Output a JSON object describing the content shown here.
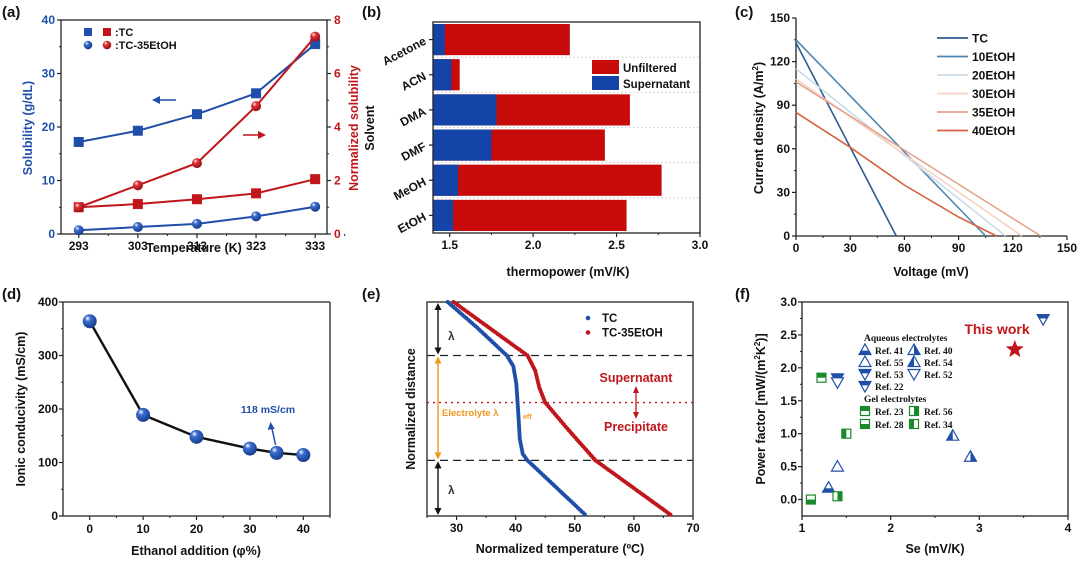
{
  "figure": {
    "panel_labels": [
      "(a)",
      "(b)",
      "(c)",
      "(d)",
      "(e)",
      "(f)"
    ]
  },
  "chart_data": [
    {
      "id": "a",
      "type": "line",
      "panel_label": "(a)",
      "title": "",
      "xlabel": "Temperature (K)",
      "ylabel": "Solubility (g/dL)",
      "y2label": "Normalized solubility",
      "x": [
        293,
        303,
        313,
        323,
        333
      ],
      "xticks": [
        "293",
        "303",
        "313",
        "323",
        "333"
      ],
      "xlim": [
        290,
        335
      ],
      "ylim": [
        0,
        40
      ],
      "yticks": [
        "0",
        "10",
        "20",
        "30",
        "40"
      ],
      "y2lim": [
        0,
        8
      ],
      "y2ticks": [
        "0",
        "2",
        "4",
        "6",
        "8"
      ],
      "colors": {
        "left": "#1f4fa8",
        "right": "#c0161b"
      },
      "legend": [
        {
          "label": ":TC",
          "markers": [
            "square",
            "square"
          ]
        },
        {
          "label": ":TC-35EtOH",
          "markers": [
            "circle",
            "circle"
          ]
        }
      ],
      "series": [
        {
          "name": "TC solubility",
          "axis": "left",
          "marker": "square",
          "color": "#1f4fa8",
          "values": [
            17.2,
            19.3,
            22.4,
            26.3,
            35.5
          ]
        },
        {
          "name": "TC-35EtOH solubility",
          "axis": "left",
          "marker": "circle",
          "color": "#1f4fa8",
          "values": [
            0.7,
            1.3,
            1.9,
            3.3,
            5.1
          ]
        },
        {
          "name": "TC normalized",
          "axis": "right",
          "marker": "square",
          "color": "#c0161b",
          "values": [
            1.0,
            1.12,
            1.3,
            1.52,
            2.05
          ]
        },
        {
          "name": "TC-35EtOH normalized",
          "axis": "right",
          "marker": "circle",
          "color": "#c0161b",
          "values": [
            1.0,
            1.82,
            2.65,
            4.78,
            7.38
          ]
        }
      ],
      "annotations": [
        {
          "type": "arrow",
          "direction": "left",
          "color": "#1f4fa8",
          "at": [
            310,
            25.2
          ]
        },
        {
          "type": "arrow",
          "direction": "right",
          "color": "#c0161b",
          "at": [
            319,
            4.1
          ]
        }
      ]
    },
    {
      "id": "b",
      "type": "bar",
      "orientation": "horizontal",
      "panel_label": "(b)",
      "xlabel": "thermopower (mV/K)",
      "ylabel": "Solvent",
      "categories": [
        "Acetone",
        "ACN",
        "DMA",
        "DMF",
        "MeOH",
        "EtOH"
      ],
      "xlim": [
        1.4,
        3.0
      ],
      "xticks": [
        "1.5",
        "2.0",
        "2.5",
        "3.0"
      ],
      "legend": [
        {
          "label": "Unfiltered",
          "color": "#c70a0a"
        },
        {
          "label": "Supernatant",
          "color": "#1544a8"
        }
      ],
      "series": [
        {
          "name": "Unfiltered",
          "color": "#c70a0a",
          "values": [
            2.22,
            1.56,
            2.58,
            2.43,
            2.77,
            2.56
          ]
        },
        {
          "name": "Supernatant",
          "color": "#1544a8",
          "values": [
            1.47,
            1.51,
            1.78,
            1.75,
            1.55,
            1.52
          ]
        }
      ]
    },
    {
      "id": "c",
      "type": "line",
      "panel_label": "(c)",
      "xlabel": "Voltage (mV)",
      "ylabel": "Current density (A/m²)",
      "ylabel_parts": [
        "Current density (A/m",
        "2",
        ")"
      ],
      "xlim": [
        0,
        150
      ],
      "ylim": [
        0,
        150
      ],
      "xticks": [
        "0",
        "30",
        "60",
        "90",
        "120",
        "150"
      ],
      "yticks": [
        "0",
        "30",
        "60",
        "90",
        "120",
        "150"
      ],
      "series": [
        {
          "name": "TC",
          "color": "#2d5d8f",
          "points": [
            [
              0,
              133
            ],
            [
              55.5,
              0
            ]
          ]
        },
        {
          "name": "10EtOH",
          "color": "#4f86b0",
          "points": [
            [
              0,
              135
            ],
            [
              105,
              0
            ]
          ]
        },
        {
          "name": "20EtOH",
          "color": "#c9dcea",
          "points": [
            [
              0,
              115
            ],
            [
              116,
              0
            ]
          ]
        },
        {
          "name": "30EtOH",
          "color": "#f6d2c2",
          "points": [
            [
              0,
              108
            ],
            [
              125,
              0
            ]
          ]
        },
        {
          "name": "35EtOH",
          "color": "#e4a58b",
          "points": [
            [
              0,
              106
            ],
            [
              135.5,
              0
            ]
          ]
        },
        {
          "name": "40EtOH",
          "color": "#d4623f",
          "points": [
            [
              0,
              85
            ],
            [
              30,
              61
            ],
            [
              60,
              35
            ],
            [
              90,
              13
            ],
            [
              111,
              0
            ]
          ]
        }
      ]
    },
    {
      "id": "d",
      "type": "line",
      "panel_label": "(d)",
      "xlabel": "Ethanol addition (φ%)",
      "ylabel": "Ionic conducivity (mS/cm)",
      "xlim": [
        -5,
        45
      ],
      "ylim": [
        0,
        400
      ],
      "xticks": [
        "0",
        "10",
        "20",
        "30",
        "40"
      ],
      "yticks": [
        "0",
        "100",
        "200",
        "300",
        "400"
      ],
      "series": [
        {
          "name": "Ionic conductivity",
          "color": "#1f4fa8",
          "x": [
            0,
            10,
            20,
            30,
            35,
            40
          ],
          "values": [
            364,
            189,
            148,
            126,
            118,
            114
          ]
        }
      ],
      "annotations": [
        {
          "text": "118 mS/cm",
          "color": "#1f4fa8",
          "points_to": [
            35,
            118
          ]
        }
      ]
    },
    {
      "id": "e",
      "type": "scatter",
      "panel_label": "(e)",
      "xlabel": "Normalized temperature (ºC)",
      "ylabel": "Normalized distance",
      "xlim": [
        25,
        70
      ],
      "ylim": [
        0,
        1
      ],
      "xticks": [
        "30",
        "40",
        "50",
        "60",
        "70"
      ],
      "legend": [
        {
          "label": "TC",
          "color": "#1f4fa8"
        },
        {
          "label": "TC-35EtOH",
          "color": "#c0161b"
        }
      ],
      "series": [
        {
          "name": "TC",
          "color": "#1f4fa8",
          "points": [
            [
              28.5,
              1.0
            ],
            [
              33.5,
              0.88
            ],
            [
              38.5,
              0.75
            ],
            [
              39.6,
              0.7
            ],
            [
              40.1,
              0.62
            ],
            [
              40.4,
              0.5
            ],
            [
              40.7,
              0.36
            ],
            [
              41.2,
              0.29
            ],
            [
              42.0,
              0.26
            ],
            [
              47.0,
              0.13
            ],
            [
              52.0,
              0.0
            ]
          ]
        },
        {
          "name": "TC-35EtOH",
          "color": "#c0161b",
          "points": [
            [
              29.5,
              1.0
            ],
            [
              36.0,
              0.87
            ],
            [
              42.0,
              0.75
            ],
            [
              43.3,
              0.68
            ],
            [
              44.0,
              0.6
            ],
            [
              45.0,
              0.53
            ],
            [
              49.0,
              0.4
            ],
            [
              53.5,
              0.26
            ],
            [
              60.0,
              0.13
            ],
            [
              66.5,
              0.0
            ]
          ]
        }
      ],
      "reference_lines": [
        {
          "type": "dashed",
          "y": 0.75,
          "color": "#222222"
        },
        {
          "type": "dashed",
          "y": 0.26,
          "color": "#222222"
        },
        {
          "type": "dotted",
          "y": 0.53,
          "color": "#c0161b"
        }
      ],
      "annotations": [
        {
          "text": "λ",
          "color": "#333333",
          "region": "top"
        },
        {
          "text": "λ",
          "color": "#333333",
          "region": "bottom"
        },
        {
          "text": "Electrolyte λ",
          "subscript": "eff",
          "color": "#f0961e"
        },
        {
          "text": "Supernatant",
          "color": "#c0161b"
        },
        {
          "text": "Precipitate",
          "color": "#c0161b"
        }
      ]
    },
    {
      "id": "f",
      "type": "scatter",
      "panel_label": "(f)",
      "xlabel": "Se (mV/K)",
      "ylabel": "Power factor [mW/(m²K²)]",
      "ylabel_parts": [
        "Power factor [mW/(m",
        "2",
        "K",
        "2",
        ")]"
      ],
      "xlim": [
        1,
        4
      ],
      "ylim": [
        -0.25,
        3.0
      ],
      "xticks": [
        "1",
        "2",
        "3",
        "4"
      ],
      "yticks": [
        "0.0",
        "0.5",
        "1.0",
        "1.5",
        "2.0",
        "2.5",
        "3.0"
      ],
      "legend_groups": [
        {
          "title": "Aqueous electrolytes",
          "entries": [
            "Ref. 41",
            "Ref. 40",
            "Ref. 55",
            "Ref. 54",
            "Ref. 53",
            "Ref. 52",
            "Ref. 22"
          ]
        },
        {
          "title": "Gel electrolytes",
          "entries": [
            "Ref. 23",
            "Ref. 56",
            "Ref. 28",
            "Ref. 34"
          ]
        }
      ],
      "series": [
        {
          "name": "Ref. 41",
          "marker": "triangle-up-bottomfill",
          "color": "#1f4fa8",
          "x": 1.3,
          "y": 0.18
        },
        {
          "name": "Ref. 40",
          "marker": "triangle-up-rightfill",
          "color": "#1f4fa8",
          "x": 2.9,
          "y": 0.65
        },
        {
          "name": "Ref. 55",
          "marker": "triangle-up-open",
          "color": "#1f4fa8",
          "x": 1.4,
          "y": 0.5
        },
        {
          "name": "Ref. 54",
          "marker": "triangle-up-leftfill",
          "color": "#1f4fa8",
          "x": 2.7,
          "y": 0.97
        },
        {
          "name": "Ref. 53",
          "marker": "triangle-down-topfill",
          "color": "#1f4fa8",
          "x": 1.4,
          "y": 1.84
        },
        {
          "name": "Ref. 52",
          "marker": "triangle-down-open",
          "color": "#1f4fa8",
          "x": 1.4,
          "y": 1.78
        },
        {
          "name": "Ref. 22",
          "marker": "triangle-down-topfill",
          "color": "#1f4fa8",
          "x": 3.72,
          "y": 2.74
        },
        {
          "name": "Ref. 23",
          "marker": "square-topfill",
          "color": "#1a8a2c",
          "x": 1.22,
          "y": 1.85
        },
        {
          "name": "Ref. 56",
          "marker": "square-rightfill",
          "color": "#1a8a2c",
          "x": 1.4,
          "y": 0.05
        },
        {
          "name": "Ref. 28",
          "marker": "square-bottomfill",
          "color": "#1a8a2c",
          "x": 1.1,
          "y": 0.0
        },
        {
          "name": "Ref. 34",
          "marker": "square-leftfill",
          "color": "#1a8a2c",
          "x": 1.5,
          "y": 1.0
        },
        {
          "name": "This work",
          "marker": "star",
          "color": "#c0161b",
          "x": 3.4,
          "y": 2.28
        }
      ],
      "annotations": [
        {
          "text": "This work",
          "color": "#c0161b"
        }
      ]
    }
  ]
}
